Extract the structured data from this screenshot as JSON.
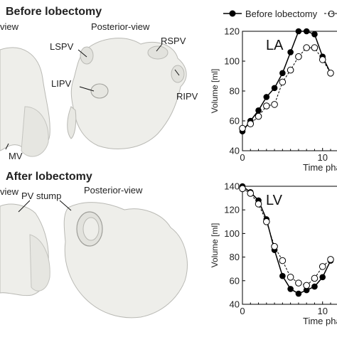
{
  "figure": {
    "before_title": "Before lobectomy",
    "after_title": "After lobectomy",
    "view_left_top": "view",
    "view_left_bottom": "view",
    "posterior_top": "Posterior-view",
    "posterior_bottom": "Posterior-view",
    "labels": {
      "lspv": "LSPV",
      "rspv": "RSPV",
      "lipv": "LIPV",
      "ripv": "RIPV",
      "mv": "MV",
      "pv_stump": "PV stump"
    },
    "surface_color": "#eeeeea",
    "surface_stroke": "#b9b9b4"
  },
  "chart_data": [
    {
      "type": "line",
      "title": "LA",
      "xlabel": "Time pha",
      "ylabel": "Volume [ml]",
      "ylim": [
        40,
        120
      ],
      "yticks": [
        "40",
        "60",
        "80",
        "100",
        "120"
      ],
      "xticks": [
        "0",
        "10"
      ],
      "xlim": [
        0,
        11.8
      ],
      "grid": false,
      "legend": [
        "Before lobectomy",
        "O"
      ],
      "legend_position": "top",
      "series": [
        {
          "name": "Before lobectomy",
          "style": "solid",
          "marker": "filled",
          "x": [
            0,
            1,
            2,
            3,
            4,
            5,
            6,
            7,
            8,
            9,
            10,
            11
          ],
          "y": [
            53,
            60,
            67,
            76,
            82,
            92,
            106,
            120,
            120,
            118,
            103,
            92
          ]
        },
        {
          "name": "O",
          "style": "dashed",
          "marker": "open",
          "x": [
            0,
            1,
            2,
            3,
            4,
            5,
            6,
            7,
            8,
            9,
            10,
            11
          ],
          "y": [
            55,
            58,
            63,
            70,
            71,
            86,
            94,
            103,
            109,
            109,
            101,
            92
          ]
        }
      ]
    },
    {
      "type": "line",
      "title": "LV",
      "xlabel": "Time pha",
      "ylabel": "Volume [ml]",
      "ylim": [
        40,
        140
      ],
      "yticks": [
        "40",
        "60",
        "80",
        "100",
        "120",
        "140"
      ],
      "xticks": [
        "0",
        "10"
      ],
      "xlim": [
        0,
        11.8
      ],
      "grid": false,
      "series": [
        {
          "name": "Before lobectomy",
          "style": "solid",
          "marker": "filled",
          "x": [
            0,
            1,
            2,
            3,
            4,
            5,
            6,
            7,
            8,
            9,
            10,
            11
          ],
          "y": [
            140,
            135,
            128,
            112,
            86,
            64,
            53,
            49,
            52,
            55,
            63,
            77
          ]
        },
        {
          "name": "O",
          "style": "dashed",
          "marker": "open",
          "x": [
            0,
            1,
            2,
            3,
            4,
            5,
            6,
            7,
            8,
            9,
            10,
            11
          ],
          "y": [
            138,
            134,
            125,
            110,
            89,
            77,
            63,
            58,
            56,
            62,
            72,
            78
          ]
        }
      ]
    }
  ]
}
